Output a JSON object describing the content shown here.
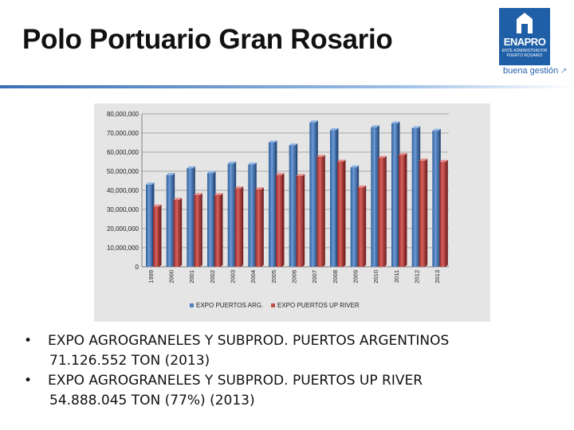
{
  "slide": {
    "title": "Polo Portuario Gran Rosario",
    "logo": {
      "name": "ENAPRO",
      "subtitle": "ENTE ADMINISTRADOR PUERTO ROSARIO",
      "tagline": "buena gestión"
    }
  },
  "bullets": [
    {
      "line1": "EXPO AGROGRANELES Y SUBPROD. PUERTOS ARGENTINOS",
      "line2": "71.126.552 TON (2013)"
    },
    {
      "line1": "EXPO AGROGRANELES Y SUBPROD. PUERTOS UP RIVER",
      "line2": "54.888.045 TON (77%) (2013)"
    }
  ],
  "colors": {
    "series_arg": "#4f81bd",
    "series_up_river": "#c0504d",
    "accent": "#1f5fa8"
  },
  "chart_data": {
    "type": "bar",
    "title": "",
    "xlabel": "",
    "ylabel": "",
    "categories": [
      "1999",
      "2000",
      "2001",
      "2002",
      "2003",
      "2004",
      "2005",
      "2006",
      "2007",
      "2008",
      "2009",
      "2010",
      "2011",
      "2012",
      "2013"
    ],
    "series": [
      {
        "name": "EXPO PUERTOS ARG.",
        "values": [
          43000000,
          48000000,
          51500000,
          49000000,
          54000000,
          53500000,
          65000000,
          63500000,
          75500000,
          71500000,
          52000000,
          73000000,
          75000000,
          72500000,
          71126552
        ]
      },
      {
        "name": "EXPO PUERTOS UP RIVER",
        "values": [
          31500000,
          35000000,
          37500000,
          37500000,
          41000000,
          40500000,
          48000000,
          47500000,
          57500000,
          55000000,
          41500000,
          57000000,
          58500000,
          55500000,
          54888045
        ]
      }
    ],
    "y_ticks": [
      "0",
      "10,000,000",
      "20,000,000",
      "30,000,000",
      "40,000,000",
      "50,000,000",
      "60,000,000",
      "70,000,000",
      "80,000,000"
    ],
    "ylim": [
      0,
      80000000
    ],
    "grid": true,
    "legend_position": "bottom"
  }
}
